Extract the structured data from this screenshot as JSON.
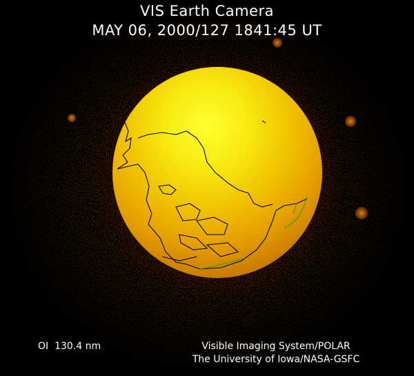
{
  "header": {
    "title": "VIS Earth Camera",
    "timestamp": "MAY 06, 2000/127 1841:45 UT"
  },
  "footer": {
    "wavelength": "OI  130.4 nm",
    "credit_line1": "Visible Imaging System/POLAR",
    "credit_line2": "The University of Iowa/NASA-GSFC"
  },
  "colors": {
    "background": "#000000",
    "globe_core": "#ffff30",
    "globe_edge": "#a05a00",
    "coastline": "#000000",
    "coastline_green": "#2aa02a",
    "text": "#ffffff"
  }
}
